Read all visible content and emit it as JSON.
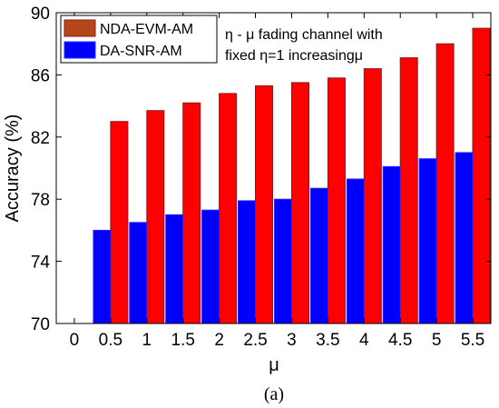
{
  "chart_data": {
    "type": "bar",
    "x_ticks": [
      "0",
      "0.5",
      "1",
      "1.5",
      "2",
      "2.5",
      "3",
      "3.5",
      "4",
      "4.5",
      "5",
      "5.5"
    ],
    "categories": [
      "0.5",
      "1",
      "1.5",
      "2",
      "2.5",
      "3",
      "3.5",
      "4",
      "4.5",
      "5",
      "5.5"
    ],
    "series": [
      {
        "name": "NDA-EVM-AM",
        "color": "#ff0000",
        "edge_color": "#8b1a1a",
        "legend_color": "#b5451b",
        "values": [
          83.0,
          83.7,
          84.2,
          84.8,
          85.3,
          85.5,
          85.8,
          86.4,
          87.1,
          88.0,
          89.0
        ]
      },
      {
        "name": "DA-SNR-AM",
        "color": "#0000ff",
        "edge_color": "#2a2aff",
        "legend_color": "#0000ff",
        "values": [
          76.0,
          76.5,
          77.0,
          77.3,
          77.9,
          78.0,
          78.7,
          79.3,
          80.1,
          80.6,
          81.0
        ]
      }
    ],
    "ylim": [
      70,
      90
    ],
    "y_ticks": [
      "70",
      "74",
      "78",
      "82",
      "86",
      "90"
    ],
    "xlabel": "μ",
    "ylabel": "Accuracy (%)",
    "annotation": [
      "η - μ fading channel with",
      "fixed η=1 increasingμ"
    ],
    "caption": "(a)",
    "legend_position": "top-left",
    "grid": false
  }
}
